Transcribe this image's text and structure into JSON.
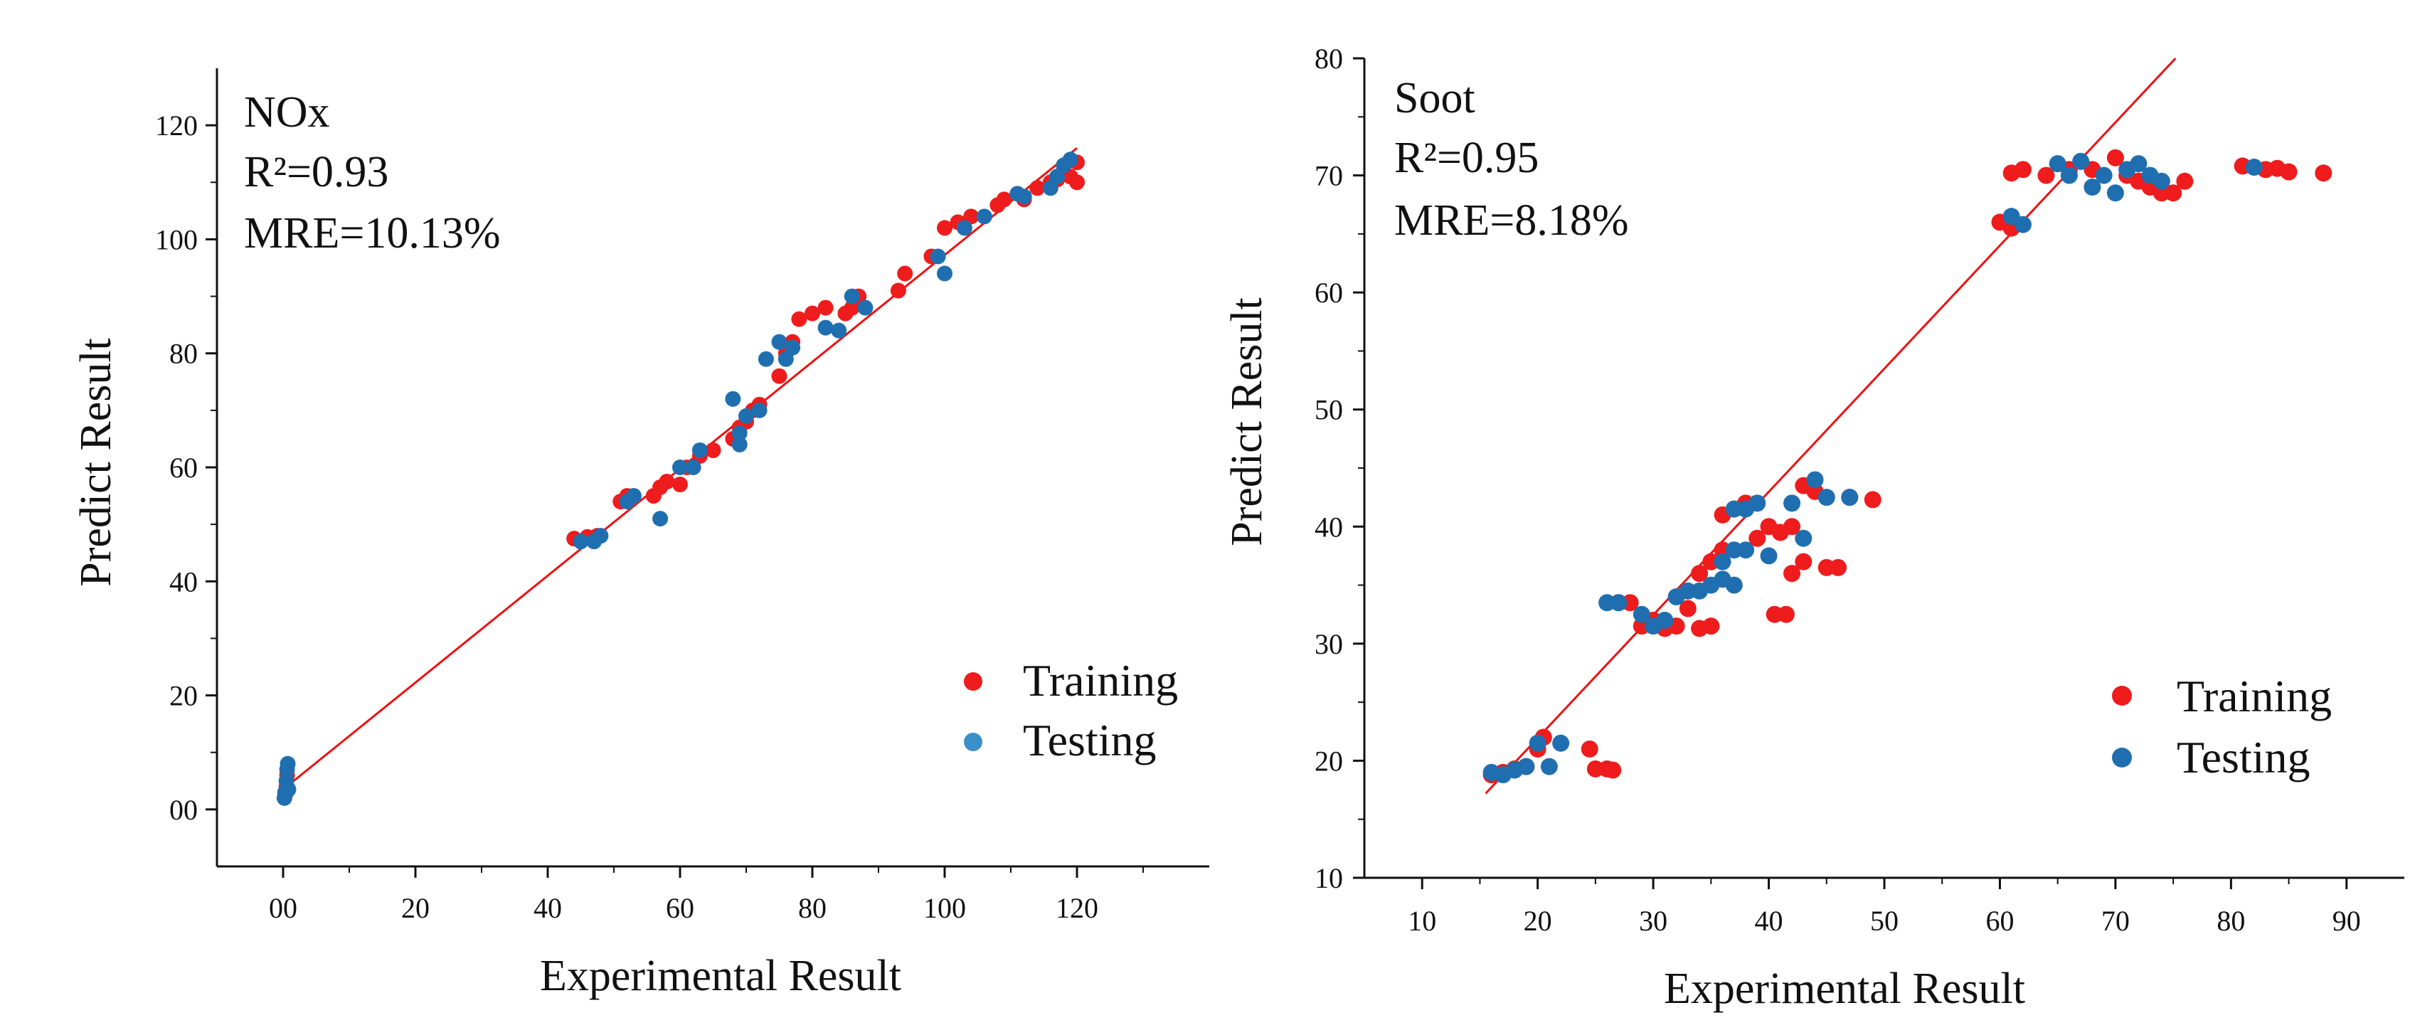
{
  "colors": {
    "training": "#ee1c1c",
    "testing": "#1f6fb0",
    "testing_legend": "#3a8fca",
    "fit_line": "#ee1111",
    "axis": "#111111"
  },
  "chart_data": [
    {
      "type": "scatter",
      "title": "NOx",
      "annotations": [
        "NOx",
        "R²=0.93",
        "MRE=10.13%"
      ],
      "xlabel": "Experimental Result",
      "ylabel": "Predict Result",
      "xlim": [
        -10,
        140
      ],
      "ylim": [
        -10,
        130
      ],
      "xticks": [
        0,
        20,
        40,
        60,
        80,
        100,
        120
      ],
      "xtick_labels": [
        "00",
        "20",
        "40",
        "60",
        "80",
        "100",
        "120"
      ],
      "yticks": [
        0,
        20,
        40,
        60,
        80,
        100,
        120
      ],
      "ytick_labels": [
        "00",
        "20",
        "40",
        "60",
        "80",
        "100",
        "120"
      ],
      "legend": {
        "position": "bottom-right",
        "labels": [
          "Training",
          "Testing"
        ]
      },
      "fit_line": {
        "x": [
          0,
          120
        ],
        "y": [
          3.5,
          116
        ]
      },
      "series": [
        {
          "name": "Training",
          "points": [
            [
              0.3,
              2.5
            ],
            [
              0.5,
              4
            ],
            [
              0.6,
              6
            ],
            [
              44,
              47.5
            ],
            [
              46,
              47.8
            ],
            [
              47.5,
              48
            ],
            [
              51,
              54
            ],
            [
              52,
              55
            ],
            [
              56,
              55
            ],
            [
              57,
              56.5
            ],
            [
              58,
              57.5
            ],
            [
              60,
              57
            ],
            [
              61,
              60
            ],
            [
              63,
              62
            ],
            [
              65,
              63
            ],
            [
              68,
              65
            ],
            [
              69,
              67
            ],
            [
              70,
              68
            ],
            [
              71,
              70
            ],
            [
              72,
              71
            ],
            [
              75,
              76
            ],
            [
              76,
              80
            ],
            [
              77,
              82
            ],
            [
              78,
              86
            ],
            [
              80,
              87
            ],
            [
              82,
              88
            ],
            [
              85,
              87
            ],
            [
              86,
              88
            ],
            [
              87,
              90
            ],
            [
              93,
              91
            ],
            [
              94,
              94
            ],
            [
              98,
              97
            ],
            [
              100,
              102
            ],
            [
              102,
              103
            ],
            [
              104,
              104
            ],
            [
              108,
              106
            ],
            [
              109,
              107
            ],
            [
              112,
              107
            ],
            [
              114,
              109
            ],
            [
              116,
              110
            ],
            [
              117,
              110.5
            ],
            [
              118,
              112
            ],
            [
              119,
              111
            ],
            [
              120,
              113.5
            ],
            [
              120,
              110
            ]
          ]
        },
        {
          "name": "Testing",
          "points": [
            [
              0.2,
              2
            ],
            [
              0.3,
              3
            ],
            [
              0.5,
              5
            ],
            [
              0.6,
              7
            ],
            [
              0.7,
              8
            ],
            [
              0.8,
              3.5
            ],
            [
              45,
              47
            ],
            [
              47,
              47
            ],
            [
              48,
              48
            ],
            [
              52,
              54
            ],
            [
              53,
              55
            ],
            [
              57,
              51
            ],
            [
              60,
              60
            ],
            [
              62,
              60
            ],
            [
              63,
              63
            ],
            [
              68,
              72
            ],
            [
              69,
              64
            ],
            [
              69,
              66
            ],
            [
              70,
              69
            ],
            [
              72,
              70
            ],
            [
              73,
              79
            ],
            [
              75,
              82
            ],
            [
              76,
              79
            ],
            [
              77,
              81
            ],
            [
              82,
              84.5
            ],
            [
              84,
              84
            ],
            [
              86,
              90
            ],
            [
              88,
              88
            ],
            [
              99,
              97
            ],
            [
              100,
              94
            ],
            [
              103,
              102
            ],
            [
              106,
              104
            ],
            [
              111,
              108
            ],
            [
              112,
              107.5
            ],
            [
              116,
              109
            ],
            [
              117,
              111
            ],
            [
              118,
              113
            ],
            [
              119,
              114
            ]
          ]
        }
      ]
    },
    {
      "type": "scatter",
      "title": "Soot",
      "annotations": [
        "Soot",
        "R²=0.95",
        "MRE=8.18%"
      ],
      "xlabel": "Experimental Result",
      "ylabel": "Predict Result",
      "xlim": [
        5,
        95
      ],
      "ylim": [
        10,
        80
      ],
      "xticks": [
        10,
        20,
        30,
        40,
        50,
        60,
        70,
        80,
        90
      ],
      "xtick_labels": [
        "10",
        "20",
        "30",
        "40",
        "50",
        "60",
        "70",
        "80",
        "90"
      ],
      "yticks": [
        10,
        20,
        30,
        40,
        50,
        60,
        70,
        80
      ],
      "ytick_labels": [
        "10",
        "20",
        "30",
        "40",
        "50",
        "60",
        "70",
        "80"
      ],
      "legend": {
        "position": "bottom-right",
        "labels": [
          "Training",
          "Testing"
        ]
      },
      "fit_line": {
        "x": [
          15.5,
          75.2
        ],
        "y": [
          17.2,
          80
        ]
      },
      "series": [
        {
          "name": "Training",
          "points": [
            [
              16,
              18.8
            ],
            [
              17,
              19
            ],
            [
              18,
              19.3
            ],
            [
              19,
              19.5
            ],
            [
              20,
              21
            ],
            [
              20.5,
              22
            ],
            [
              24.5,
              21
            ],
            [
              25,
              19.3
            ],
            [
              26,
              19.3
            ],
            [
              26.5,
              19.2
            ],
            [
              27,
              33.5
            ],
            [
              28,
              33.5
            ],
            [
              29,
              31.5
            ],
            [
              30,
              32
            ],
            [
              31,
              31.3
            ],
            [
              32,
              31.5
            ],
            [
              33,
              33
            ],
            [
              34,
              31.3
            ],
            [
              35,
              31.5
            ],
            [
              34,
              36
            ],
            [
              35,
              37
            ],
            [
              36,
              38
            ],
            [
              36,
              41
            ],
            [
              37,
              41.5
            ],
            [
              38,
              42
            ],
            [
              39,
              39
            ],
            [
              40,
              40
            ],
            [
              41,
              39.5
            ],
            [
              42,
              40
            ],
            [
              42,
              36
            ],
            [
              43,
              37
            ],
            [
              40.5,
              32.5
            ],
            [
              41.5,
              32.5
            ],
            [
              43,
              43.5
            ],
            [
              44,
              43
            ],
            [
              45,
              36.5
            ],
            [
              46,
              36.5
            ],
            [
              47,
              42.5
            ],
            [
              49,
              42.3
            ],
            [
              60,
              66
            ],
            [
              61,
              65.5
            ],
            [
              61,
              70.2
            ],
            [
              62,
              70.5
            ],
            [
              64,
              70
            ],
            [
              66,
              70.5
            ],
            [
              68,
              70.5
            ],
            [
              70,
              71.5
            ],
            [
              71,
              70
            ],
            [
              72,
              69.5
            ],
            [
              73,
              69
            ],
            [
              74,
              68.5
            ],
            [
              75,
              68.5
            ],
            [
              76,
              69.5
            ],
            [
              81,
              70.8
            ],
            [
              83,
              70.5
            ],
            [
              84,
              70.6
            ],
            [
              85,
              70.3
            ],
            [
              88,
              70.2
            ]
          ]
        },
        {
          "name": "Testing",
          "points": [
            [
              16,
              19
            ],
            [
              17,
              18.8
            ],
            [
              18,
              19.2
            ],
            [
              19,
              19.5
            ],
            [
              20,
              21.5
            ],
            [
              21,
              19.5
            ],
            [
              22,
              21.5
            ],
            [
              26,
              33.5
            ],
            [
              27,
              33.5
            ],
            [
              29,
              32.5
            ],
            [
              30,
              31.5
            ],
            [
              31,
              32
            ],
            [
              32,
              34
            ],
            [
              33,
              34.5
            ],
            [
              34,
              34.5
            ],
            [
              35,
              35
            ],
            [
              36,
              35.5
            ],
            [
              37,
              35
            ],
            [
              36,
              37
            ],
            [
              37,
              38
            ],
            [
              38,
              38
            ],
            [
              37,
              41.5
            ],
            [
              38,
              41.5
            ],
            [
              39,
              42
            ],
            [
              40,
              37.5
            ],
            [
              42,
              42
            ],
            [
              43,
              39
            ],
            [
              44,
              44
            ],
            [
              45,
              42.5
            ],
            [
              47,
              42.5
            ],
            [
              61,
              66.5
            ],
            [
              62,
              65.8
            ],
            [
              65,
              71
            ],
            [
              66,
              70
            ],
            [
              67,
              71.2
            ],
            [
              68,
              69
            ],
            [
              69,
              70
            ],
            [
              70,
              68.5
            ],
            [
              71,
              70.5
            ],
            [
              72,
              71
            ],
            [
              73,
              70
            ],
            [
              74,
              69.5
            ],
            [
              82,
              70.7
            ]
          ]
        }
      ]
    }
  ]
}
